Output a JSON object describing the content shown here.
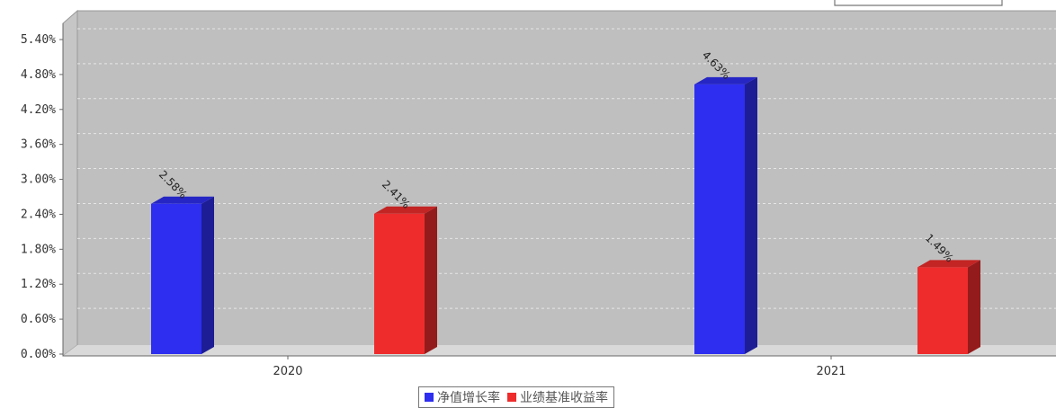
{
  "chart_data": {
    "type": "bar",
    "categories": [
      "2020",
      "2021"
    ],
    "series": [
      {
        "name": "净值增长率",
        "values": [
          2.58,
          4.63
        ],
        "labels": [
          "2.58%",
          "4.63%"
        ],
        "color": "#2e2ef0"
      },
      {
        "name": "业绩基准收益率",
        "values": [
          2.41,
          1.49
        ],
        "labels": [
          "2.41%",
          "1.49%"
        ],
        "color": "#ee2c2c"
      }
    ],
    "y_ticks": [
      "0.00%",
      "0.60%",
      "1.20%",
      "1.80%",
      "2.40%",
      "3.00%",
      "3.60%",
      "4.20%",
      "4.80%",
      "5.40%"
    ],
    "ylim": [
      0,
      5.4
    ],
    "ylabel": "",
    "xlabel": "",
    "grid": true,
    "legend_position": "bottom-center",
    "plot_background": "#bfbfbf"
  }
}
